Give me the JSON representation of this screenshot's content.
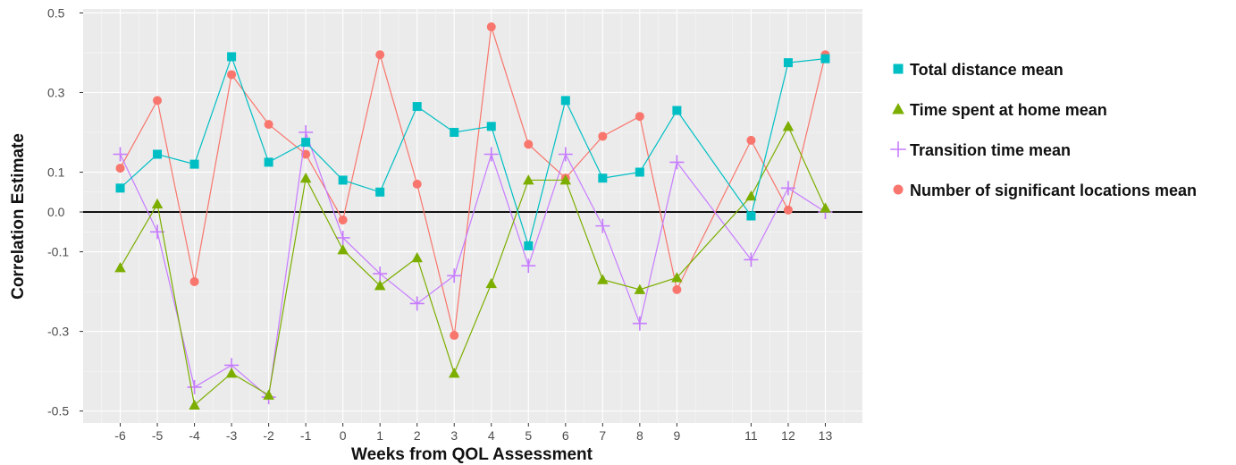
{
  "chart_data": {
    "type": "line",
    "title": "",
    "xlabel": "Weeks from QOL Assessment",
    "ylabel": "Correlation Estimate",
    "x": [
      -6,
      -5,
      -4,
      -3,
      -2,
      -1,
      0,
      1,
      2,
      3,
      4,
      5,
      6,
      7,
      8,
      9,
      11,
      12,
      13
    ],
    "x_tick_labels": [
      "-6",
      "-5",
      "-4",
      "-3",
      "-2",
      "-1",
      "0",
      "1",
      "2",
      "3",
      "4",
      "5",
      "6",
      "7",
      "8",
      "9",
      "11",
      "12",
      "13"
    ],
    "y_ticks": [
      0.5,
      0.3,
      0.1,
      0.0,
      -0.1,
      -0.3,
      -0.5
    ],
    "y_tick_labels": [
      "0.5",
      "0.3",
      "0.1",
      "0.0",
      "-0.1",
      "-0.3",
      "-0.5"
    ],
    "ylim": [
      -0.53,
      0.51
    ],
    "xlim": [
      -7,
      14
    ],
    "grid": true,
    "reference_line": 0,
    "legend_position": "right",
    "series": [
      {
        "name": "Total distance mean",
        "color": "#00BFC4",
        "marker": "square",
        "values": [
          0.06,
          0.145,
          0.12,
          0.39,
          0.125,
          0.175,
          0.08,
          0.05,
          0.265,
          0.2,
          0.215,
          -0.085,
          0.28,
          0.085,
          0.1,
          0.255,
          -0.01,
          0.375,
          0.385
        ]
      },
      {
        "name": "Time spent at home mean",
        "color": "#7CAE00",
        "marker": "triangle",
        "values": [
          -0.14,
          0.02,
          -0.485,
          -0.405,
          -0.46,
          0.085,
          -0.095,
          -0.185,
          -0.115,
          -0.405,
          -0.18,
          0.08,
          0.08,
          -0.17,
          -0.195,
          -0.165,
          0.04,
          0.215,
          0.01
        ]
      },
      {
        "name": "Transition time mean",
        "color": "#C77CFF",
        "marker": "cross",
        "values": [
          0.145,
          -0.05,
          -0.44,
          -0.385,
          -0.465,
          0.2,
          -0.065,
          -0.155,
          -0.23,
          -0.16,
          0.145,
          -0.135,
          0.145,
          -0.035,
          -0.28,
          0.125,
          -0.12,
          0.06,
          0.0
        ]
      },
      {
        "name": "Number of significant locations mean",
        "color": "#F8766D",
        "marker": "circle",
        "values": [
          0.11,
          0.28,
          -0.175,
          0.345,
          0.22,
          0.145,
          -0.02,
          0.395,
          0.07,
          -0.31,
          0.465,
          0.17,
          0.085,
          0.19,
          0.24,
          -0.195,
          0.18,
          0.005,
          0.395
        ]
      }
    ]
  }
}
